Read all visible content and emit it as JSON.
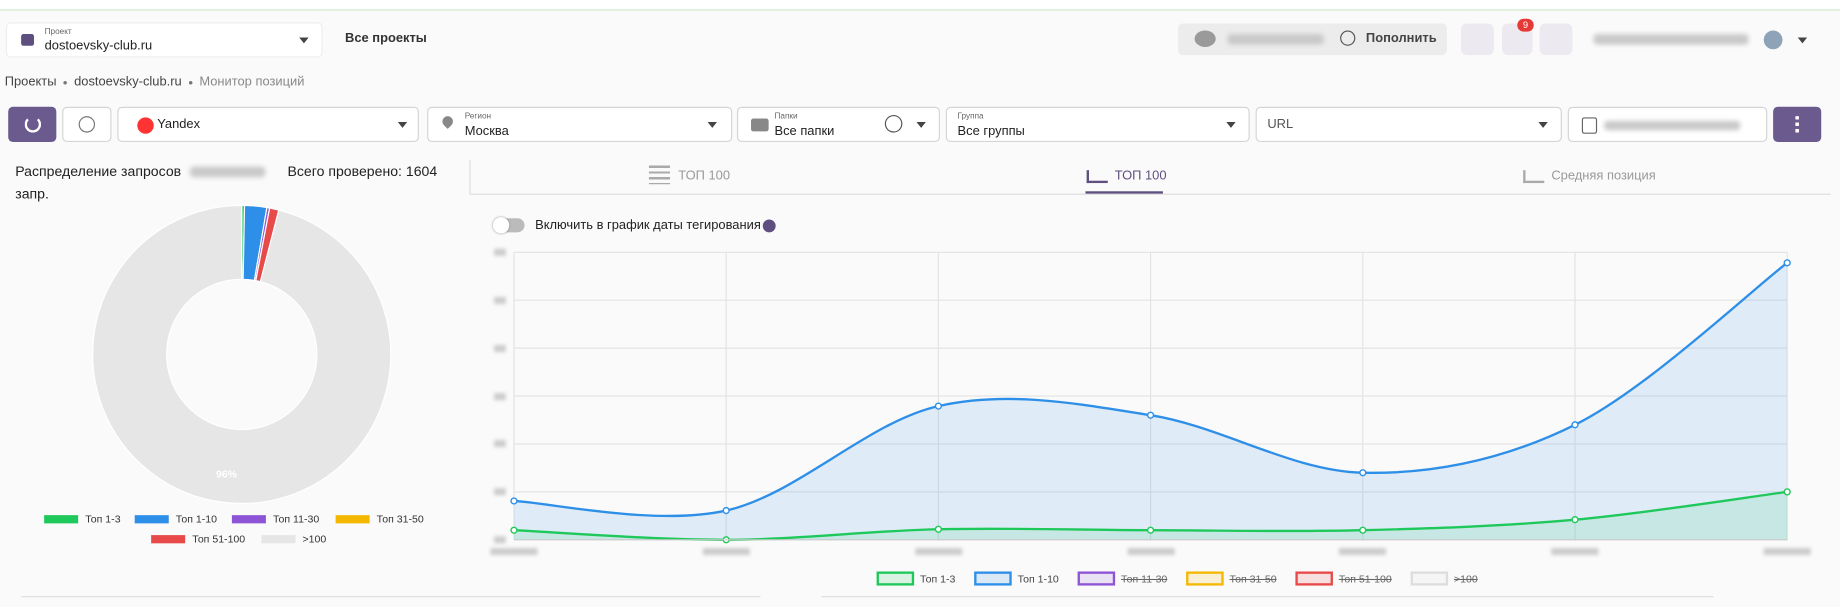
{
  "header": {
    "project_label": "Проект",
    "project": "dostoevsky-club.ru",
    "all_projects": "Все проекты",
    "top_up": "Пополнить",
    "notifications": "9"
  },
  "breadcrumbs": [
    "Проекты",
    "dostoevsky-club.ru",
    "Монитор позиций"
  ],
  "filters": {
    "engine": "Yandex",
    "region_label": "Регион",
    "region": "Москва",
    "folders_label": "Папки",
    "folders": "Все папки",
    "group_label": "Группа",
    "group": "Все группы",
    "url": "URL"
  },
  "summary": {
    "title": "Распределение запросов",
    "total": "Всего проверено: 1604",
    "unit": "запр."
  },
  "tabs": [
    "ТОП 100",
    "ТОП 100",
    "Средняя позиция"
  ],
  "toggle": "Включить в график даты тегирования",
  "chart_data": [
    {
      "type": "pie",
      "categories": [
        "Топ 1-3",
        "Топ 1-10",
        "Топ 11-30",
        "Топ 31-50",
        "Топ 51-100",
        ">100"
      ],
      "values": [
        0.3,
        2.4,
        0.3,
        0,
        1,
        96
      ],
      "value_labels": [
        null,
        null,
        null,
        null,
        null,
        "96%"
      ],
      "colors": [
        "#1fc85a",
        "#2e8fe8",
        "#8e54d6",
        "#f5b800",
        "#e84a4a",
        "#e6e6e6"
      ]
    },
    {
      "type": "line",
      "categories": [
        null,
        null,
        null,
        null,
        null,
        null,
        null
      ],
      "series": [
        {
          "name": "Топ 1-3",
          "color": "#1fc85a",
          "visible": true,
          "values": [
            2,
            0,
            2.2,
            2,
            2,
            4.2,
            10
          ]
        },
        {
          "name": "Топ 1-10",
          "color": "#2e8fe8",
          "visible": true,
          "values": [
            8.1,
            6.1,
            27.9,
            26,
            14,
            24,
            57.8
          ]
        },
        {
          "name": "Топ 11-30",
          "color": "#8e54d6",
          "visible": false,
          "values": [
            null,
            null,
            null,
            null,
            null,
            null,
            null
          ]
        },
        {
          "name": "Топ 31-50",
          "color": "#f5b800",
          "visible": false,
          "values": [
            null,
            null,
            null,
            null,
            null,
            null,
            null
          ]
        },
        {
          "name": "Топ 51-100",
          "color": "#e84a4a",
          "visible": false,
          "values": [
            null,
            null,
            null,
            null,
            null,
            null,
            null
          ]
        },
        {
          "name": ">100",
          "color": "#dddddd",
          "visible": false,
          "values": [
            null,
            null,
            null,
            null,
            null,
            null,
            null
          ]
        }
      ],
      "ylim": [
        0,
        60
      ],
      "yticks": [
        0,
        10,
        20,
        30,
        40,
        50,
        60
      ],
      "grid": true,
      "legend": "bottom"
    }
  ]
}
